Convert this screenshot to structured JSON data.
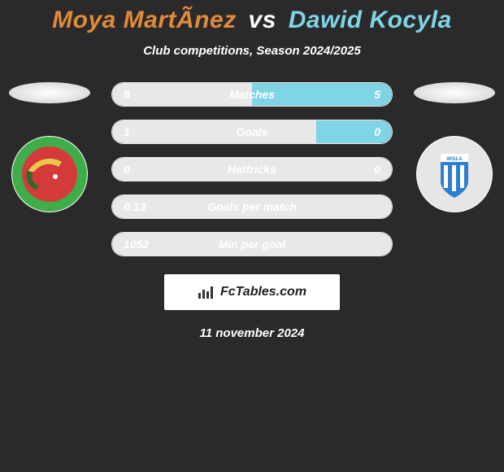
{
  "title": {
    "player1": "Moya MartÃ­nez",
    "vs": "vs",
    "player2": "Dawid Kocyla",
    "player1_color": "#e08a3a",
    "vs_color": "#ffffff",
    "player2_color": "#7fd4e6"
  },
  "subtitle": "Club competitions, Season 2024/2025",
  "date": "11 november 2024",
  "brand": "FcTables.com",
  "left_club": {
    "outer_color": "#3fae4a",
    "inner_color": "#d43a3a",
    "stripe_color": "#e9c94a"
  },
  "right_club": {
    "bg_shape_color": "#e6e6e6",
    "shield_color": "#2e7fd4",
    "stripe_color": "#ffffff"
  },
  "row_style": {
    "border_color": "#e8e8e8",
    "track_color": "transparent",
    "left_fill_color": "#e8e8e8",
    "right_fill_color": "#e8e8e8",
    "left_inner_tint": "#e08a3a",
    "right_inner_tint": "#7fd4e6"
  },
  "stats": [
    {
      "label": "Matches",
      "left_val": "8",
      "right_val": "5",
      "left_pct": 50,
      "right_pct": 50,
      "right_tinted": true
    },
    {
      "label": "Goals",
      "left_val": "1",
      "right_val": "0",
      "left_pct": 73,
      "right_pct": 27,
      "right_tinted": true
    },
    {
      "label": "Hattricks",
      "left_val": "0",
      "right_val": "0",
      "left_pct": 50,
      "right_pct": 50,
      "right_tinted": false
    },
    {
      "label": "Goals per match",
      "left_val": "0.13",
      "right_val": "",
      "left_pct": 100,
      "right_pct": 0,
      "right_tinted": false
    },
    {
      "label": "Min per goal",
      "left_val": "1052",
      "right_val": "",
      "left_pct": 100,
      "right_pct": 0,
      "right_tinted": false
    }
  ]
}
